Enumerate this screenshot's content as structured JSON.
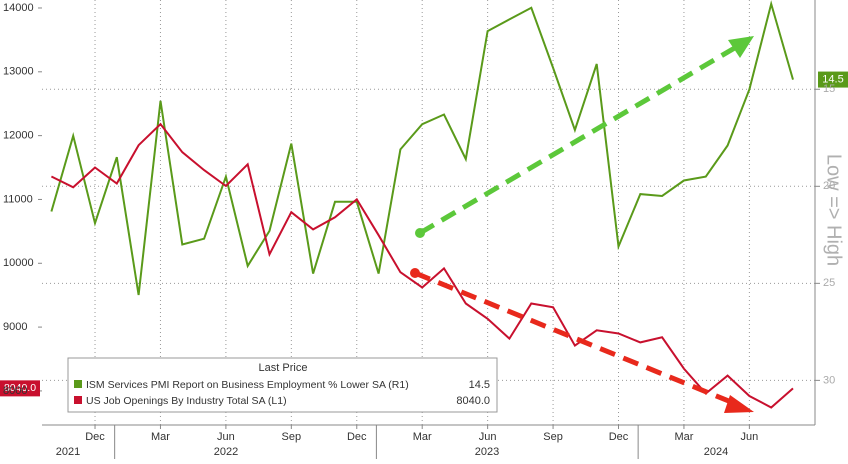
{
  "chart_data": {
    "type": "line",
    "categories": [
      null,
      null,
      "Dec",
      null,
      null,
      "Mar",
      null,
      null,
      "Jun",
      null,
      null,
      "Sep",
      null,
      null,
      "Dec",
      null,
      null,
      "Mar",
      null,
      null,
      "Jun",
      null,
      null,
      "Sep",
      null,
      null,
      "Dec",
      null,
      null,
      "Mar",
      null,
      null,
      "Jun",
      null,
      null
    ],
    "x_years": [
      "2021",
      "2022",
      "2023",
      "2024"
    ],
    "series": [
      {
        "name": "ISM Services PMI Report on Business Employment % Lower SA  (R1)",
        "color": "#5a9a1a",
        "axis": "y2",
        "last_price_label": "14.5",
        "values": [
          21.3,
          17.4,
          21.9,
          18.5,
          25.6,
          15.6,
          23.0,
          22.7,
          19.5,
          24.1,
          22.3,
          17.8,
          24.5,
          20.8,
          20.8,
          24.5,
          18.1,
          16.8,
          16.3,
          18.6,
          12.0,
          11.4,
          10.8,
          13.9,
          17.1,
          13.7,
          23.1,
          20.4,
          20.5,
          19.7,
          19.5,
          17.9,
          15.0,
          10.6,
          14.5
        ]
      },
      {
        "name": "US Job Openings By Industry Total SA  (L1)",
        "color": "#c8102e",
        "last_price_label": "8040.0",
        "values": [
          11360,
          11190,
          11500,
          11250,
          11850,
          12180,
          11740,
          11460,
          11210,
          11550,
          10140,
          10800,
          10530,
          10720,
          11000,
          10440,
          9860,
          9620,
          9920,
          9370,
          9130,
          8820,
          9370,
          9310,
          8710,
          8950,
          8900,
          8760,
          8840,
          8350,
          7960,
          8240,
          7920,
          7740,
          8040
        ]
      }
    ],
    "legend_title": "Last Price",
    "ylim": [
      7466,
      14125
    ],
    "yticks": [
      8000,
      9000,
      10000,
      11000,
      12000,
      13000,
      14000
    ],
    "y2lim": [
      10.4,
      32.3
    ],
    "y2_inverted": true,
    "y2ticks": [
      15,
      20,
      25,
      30
    ],
    "y2label": "Low => High",
    "grid": true
  }
}
